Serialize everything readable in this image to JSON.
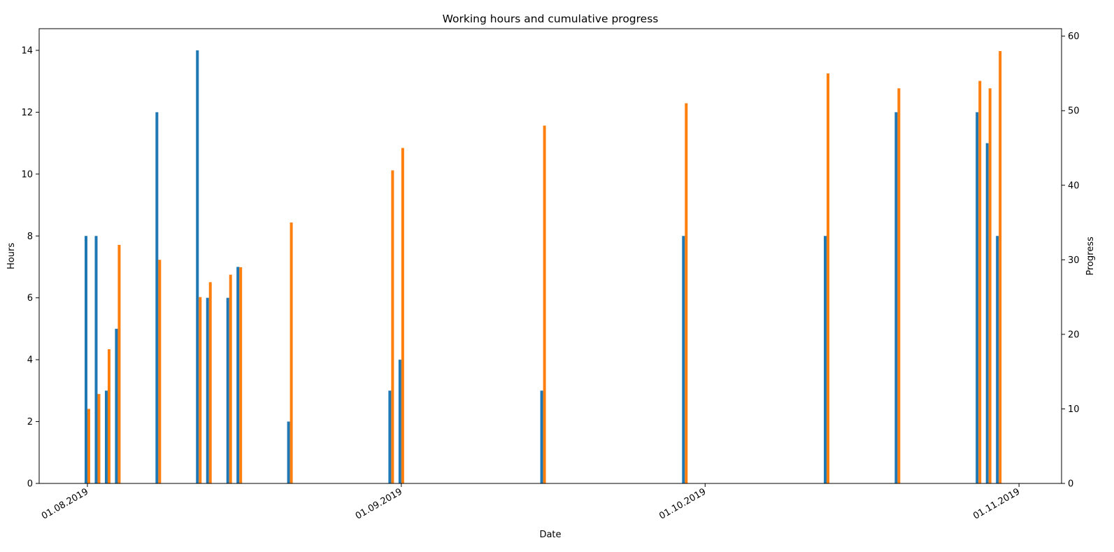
{
  "chart_data": {
    "type": "bar",
    "title": "Working hours and cumulative progress",
    "xlabel": "Date",
    "ylabel": "Hours",
    "ylabel_right": "Progress",
    "x_tick_labels": [
      "01.08.2019",
      "01.09.2019",
      "01.10.2019",
      "01.11.2019"
    ],
    "y_ticks_left": [
      "0",
      "2",
      "4",
      "6",
      "8",
      "10",
      "12",
      "14"
    ],
    "y_ticks_right": [
      "0",
      "10",
      "20",
      "30",
      "40",
      "50",
      "60"
    ],
    "ylim_left": [
      0,
      14.7
    ],
    "ylim_right": [
      0,
      61
    ],
    "grid": false,
    "colors": {
      "hours": "#1f77b4",
      "progress": "#ff7f0e"
    },
    "series": [
      {
        "axis": "left",
        "x": [
          "01.08.2019",
          "02.08.2019",
          "03.08.2019",
          "04.08.2019",
          "08.08.2019",
          "12.08.2019",
          "13.08.2019",
          "15.08.2019",
          "16.08.2019",
          "21.08.2019",
          "31.08.2019",
          "01.09.2019",
          "15.09.2019",
          "29.09.2019",
          "13.10.2019",
          "20.10.2019",
          "28.10.2019",
          "29.10.2019",
          "30.10.2019"
        ],
        "values": [
          8,
          8,
          3,
          5,
          12,
          14,
          6,
          6,
          7,
          2,
          3,
          4,
          3,
          8,
          8,
          12,
          12,
          11,
          8
        ]
      },
      {
        "axis": "right",
        "x": [
          "01.08.2019",
          "02.08.2019",
          "03.08.2019",
          "04.08.2019",
          "08.08.2019",
          "12.08.2019",
          "13.08.2019",
          "15.08.2019",
          "16.08.2019",
          "21.08.2019",
          "31.08.2019",
          "01.09.2019",
          "15.09.2019",
          "29.09.2019",
          "13.10.2019",
          "20.10.2019",
          "28.10.2019",
          "29.10.2019",
          "30.10.2019"
        ],
        "values": [
          10,
          12,
          18,
          32,
          30,
          25,
          27,
          28,
          29,
          35,
          42,
          45,
          48,
          51,
          55,
          53,
          54,
          53,
          58
        ]
      }
    ]
  }
}
